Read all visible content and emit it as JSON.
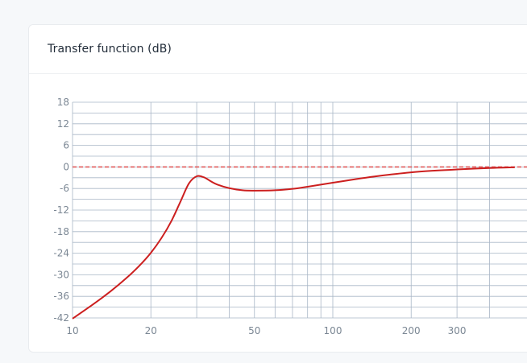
{
  "card": {
    "title": "Transfer function (dB)"
  },
  "chart_data": {
    "type": "line",
    "title": "Transfer function (dB)",
    "x_scale": "log",
    "xlim": [
      10,
      500
    ],
    "ylim": [
      -42,
      18
    ],
    "x_tick_labels": [
      10,
      20,
      50,
      100,
      200,
      300
    ],
    "x_grid": [
      10,
      20,
      30,
      40,
      50,
      60,
      70,
      80,
      90,
      100,
      200,
      300,
      400
    ],
    "y_ticks": [
      18,
      12,
      6,
      0,
      -6,
      -12,
      -18,
      -24,
      -30,
      -36,
      -42
    ],
    "y_minor_step": 3,
    "grid": true,
    "reference_line": {
      "y": 0,
      "style": "dashed"
    },
    "series": [
      {
        "color": "#cc1f1f",
        "x": [
          10,
          12,
          14,
          16,
          18,
          20,
          22,
          24,
          26,
          28,
          30,
          32,
          34,
          36,
          40,
          45,
          50,
          60,
          70,
          80,
          100,
          125,
          150,
          200,
          250,
          300,
          400,
          500
        ],
        "y": [
          -42.2,
          -38.2,
          -34.6,
          -31.1,
          -27.6,
          -23.9,
          -19.7,
          -15.0,
          -9.6,
          -4.6,
          -2.6,
          -2.9,
          -4.0,
          -4.9,
          -5.9,
          -6.5,
          -6.6,
          -6.5,
          -6.1,
          -5.5,
          -4.4,
          -3.3,
          -2.5,
          -1.5,
          -1.0,
          -0.7,
          -0.3,
          -0.1
        ]
      }
    ]
  },
  "colors": {
    "grid_line": "#a9b6c6",
    "axis_text": "#7b8794",
    "series": "#cc1f1f",
    "reference": "#e05a5a"
  }
}
